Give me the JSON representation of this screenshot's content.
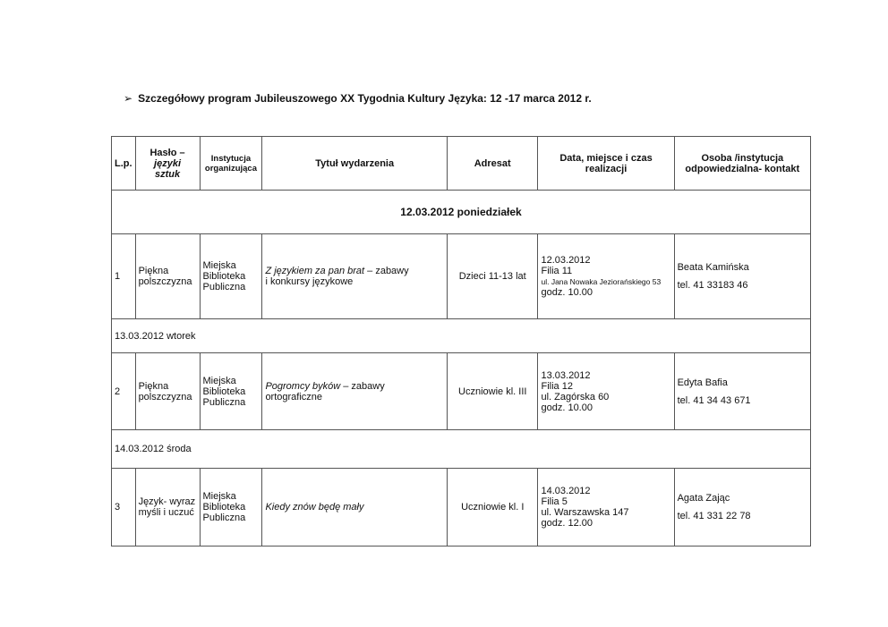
{
  "title": "Szczegółowy program Jubileuszowego XX Tygodnia Kultury Języka: 12  -17  marca 2012 r.",
  "headers": {
    "lp": "L.p.",
    "haslo1": "Hasło –",
    "haslo2": "języki",
    "haslo3": "sztuk",
    "inst": "Instytucja organizująca",
    "tytul": "Tytuł wydarzenia",
    "adresat": "Adresat",
    "data": "Data, miejsce i czas realizacji",
    "osoba": "Osoba /instytucja odpowiedzialna- kontakt"
  },
  "days": [
    {
      "label": "12.03.2012 poniedziałek",
      "event": {
        "lp": "1",
        "haslo": "Piękna polszczyzna",
        "inst": [
          "Miejska",
          "Biblioteka",
          "Publiczna"
        ],
        "title_italic": "Z językiem za pan brat",
        "title_rest": " – zabawy",
        "title_line2": " i konkursy językowe",
        "adresat": "Dzieci 11-13 lat",
        "data": [
          "12.03.2012",
          "Filia 11",
          "ul. Jana Nowaka Jeziorańskiego 53",
          "godz. 10.00"
        ],
        "osoba": "Beata Kamińska",
        "tel": "tel. 41 33183 46"
      }
    },
    {
      "label": "13.03.2012 wtorek",
      "event": {
        "lp": "2",
        "haslo": "Piękna polszczyzna",
        "inst": [
          "Miejska",
          "Biblioteka",
          "Publiczna"
        ],
        "title_italic": "Pogromcy byków",
        "title_rest": " – zabawy",
        "title_line2": "ortograficzne",
        "adresat": "Uczniowie kl. III",
        "data": [
          "13.03.2012",
          "Filia 12",
          "ul. Zagórska 60",
          "godz. 10.00"
        ],
        "osoba": "Edyta Bafia",
        "tel": "tel. 41 34 43 671"
      }
    },
    {
      "label": "14.03.2012 środa",
      "event": {
        "lp": "3",
        "haslo": "Język- wyraz myśli i uczuć",
        "inst": [
          "Miejska",
          "Biblioteka",
          "Publiczna"
        ],
        "title_italic": "Kiedy znów będę mały",
        "title_rest": "",
        "title_line2": "",
        "adresat": "Uczniowie kl. I",
        "data": [
          "14.03.2012",
          "Filia 5",
          "ul. Warszawska 147",
          "godz. 12.00"
        ],
        "osoba": "Agata Zając",
        "tel": "tel. 41 331 22 78"
      }
    }
  ]
}
